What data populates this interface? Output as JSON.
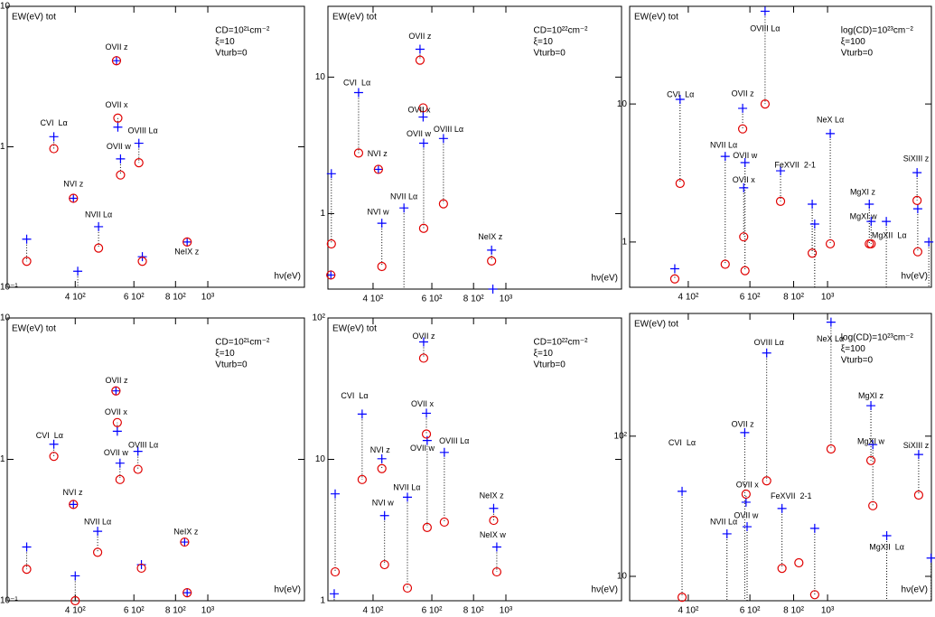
{
  "chart_data": [
    {
      "type": "scatter",
      "log_x": true,
      "log_y": true,
      "xlabel": "hν(eV)",
      "ylabel": "EW(eV) tot",
      "info": [
        "CD=10²¹cm⁻²",
        "ξ=10",
        "Vturb=0"
      ],
      "xlim": [
        250,
        1950
      ],
      "ylim": [
        0.1,
        10
      ],
      "xticks": [
        {
          "value": 400,
          "label": "4 10²"
        },
        {
          "value": 600,
          "label": "6 10²"
        },
        {
          "value": 800,
          "label": "8 10²"
        },
        {
          "value": 1000,
          "label": "10³"
        }
      ],
      "yticks": [
        {
          "value": 0.1,
          "label": "10⁻¹"
        },
        1,
        10
      ],
      "x": [
        286,
        345,
        395,
        407,
        470,
        532,
        537,
        547,
        621,
        636,
        867
      ],
      "series": [
        {
          "marker": "plus",
          "color": "#0000ff",
          "values": [
            0.22,
            1.18,
            0.43,
            0.13,
            0.27,
            4.1,
            1.38,
            0.82,
            1.06,
            0.165,
            0.21
          ]
        },
        {
          "marker": "circle",
          "color": "#e00000",
          "values": [
            0.153,
            0.97,
            0.43,
            null,
            0.19,
            4.1,
            1.6,
            0.63,
            0.77,
            0.153,
            0.21
          ]
        }
      ],
      "annotations": [
        {
          "text": "OVII z",
          "x": 532,
          "y": 5.1
        },
        {
          "text": "OVII x",
          "x": 532,
          "y": 1.97
        },
        {
          "text": "CVI  Lα",
          "x": 345,
          "y": 1.47
        },
        {
          "text": "OVII w",
          "x": 540,
          "y": 1.0
        },
        {
          "text": "OVIII Lα",
          "x": 638,
          "y": 1.29
        },
        {
          "text": "NVI z",
          "x": 395,
          "y": 0.54
        },
        {
          "text": "NVII Lα",
          "x": 470,
          "y": 0.326
        },
        {
          "text": "NeIX z",
          "x": 865,
          "y": 0.178
        }
      ]
    },
    {
      "type": "scatter",
      "log_x": true,
      "log_y": true,
      "xlabel": "hν(eV)",
      "ylabel": "EW(eV) tot",
      "info": [
        "CD=10²²cm⁻²",
        "ξ=10",
        "Vturb=0"
      ],
      "xlim": [
        293,
        2220
      ],
      "ylim": [
        0.28,
        33
      ],
      "xticks": [
        {
          "value": 400,
          "label": "4 10²"
        },
        {
          "value": 600,
          "label": "6 10²"
        },
        {
          "value": 800,
          "label": "8 10²"
        },
        {
          "value": 1000,
          "label": "10³"
        }
      ],
      "yticks": [
        1,
        10
      ],
      "x": [
        299,
        300,
        362,
        415,
        425,
        495,
        553,
        565,
        567,
        650,
        906,
        914
      ],
      "series": [
        {
          "marker": "plus",
          "color": "#0000ff",
          "values": [
            0.355,
            1.96,
            7.7,
            2.11,
            0.85,
            1.1,
            16,
            5.1,
            3.28,
            3.55,
            0.54,
            0.28
          ]
        },
        {
          "marker": "circle",
          "color": "#e00000",
          "values": [
            0.355,
            0.6,
            2.78,
            2.11,
            0.41,
            null,
            13.3,
            5.95,
            0.78,
            1.18,
            0.45,
            null
          ]
        }
      ],
      "annotations": [
        {
          "text": "OVII z",
          "x": 553,
          "y": 19.8
        },
        {
          "text": "CVI  Lα",
          "x": 358,
          "y": 9.0
        },
        {
          "text": "OVII x",
          "x": 550,
          "y": 5.7
        },
        {
          "text": "OVIII Lα",
          "x": 673,
          "y": 4.1
        },
        {
          "text": "OVII w",
          "x": 548,
          "y": 3.8
        },
        {
          "text": "NVI z",
          "x": 412,
          "y": 2.73
        },
        {
          "text": "NVI w",
          "x": 414,
          "y": 1.02
        },
        {
          "text": "NVII Lα",
          "x": 495,
          "y": 1.32
        },
        {
          "text": "NeIX z",
          "x": 898,
          "y": 0.67
        }
      ]
    },
    {
      "type": "scatter",
      "log_x": true,
      "log_y": true,
      "xlabel": "hν(eV)",
      "ylabel": "EW(eV) tot",
      "info": [
        "log(CD)=10²³cm⁻²",
        "ξ=100",
        "Vturb=0"
      ],
      "xlim": [
        272,
        1980
      ],
      "ylim": [
        0.47,
        51
      ],
      "xticks": [
        {
          "value": 400,
          "label": "4 10²"
        },
        {
          "value": 600,
          "label": "6 10²"
        },
        {
          "value": 800,
          "label": "8 10²"
        },
        {
          "value": 1000,
          "label": "10³"
        }
      ],
      "yticks": [
        1,
        10
      ],
      "x": [
        366,
        379,
        510,
        572,
        576,
        581,
        663,
        734,
        904,
        919,
        1018,
        1316,
        1332,
        1472,
        1802,
        1810,
        1947
      ],
      "series": [
        {
          "marker": "plus",
          "color": "#0000ff",
          "values": [
            0.64,
            10.8,
            4.17,
            9.3,
            2.47,
            3.76,
            47,
            3.28,
            1.88,
            1.35,
            6.1,
            1.88,
            1.41,
            1.41,
            3.18,
            1.74,
            1.0
          ]
        },
        {
          "marker": "circle",
          "color": "#e00000",
          "values": [
            0.54,
            2.66,
            0.69,
            6.6,
            1.09,
            0.62,
            10.0,
            1.97,
            0.83,
            null,
            0.97,
            0.97,
            0.97,
            null,
            2.0,
            0.85,
            null
          ]
        }
      ],
      "annotations": [
        {
          "text": "OVIII Lα",
          "x": 663,
          "y": 35
        },
        {
          "text": "CVI  Lα",
          "x": 380,
          "y": 11.6
        },
        {
          "text": "OVII z",
          "x": 572,
          "y": 11.8
        },
        {
          "text": "NeX Lα",
          "x": 1018,
          "y": 7.6
        },
        {
          "text": "NVII Lα",
          "x": 505,
          "y": 5.0
        },
        {
          "text": "OVII w",
          "x": 581,
          "y": 4.2
        },
        {
          "text": "FeXVII  2-1",
          "x": 808,
          "y": 3.6
        },
        {
          "text": "OVII x",
          "x": 576,
          "y": 2.8
        },
        {
          "text": "SiXIII z",
          "x": 1790,
          "y": 4.0
        },
        {
          "text": "MgXI z",
          "x": 1260,
          "y": 2.29
        },
        {
          "text": "MgXI w",
          "x": 1265,
          "y": 1.52
        },
        {
          "text": "MgXII  Lα",
          "x": 1500,
          "y": 1.11
        }
      ]
    },
    {
      "type": "scatter",
      "log_x": true,
      "log_y": true,
      "xlabel": "hν(eV)",
      "ylabel": "EW(eV) tot",
      "info": [
        "CD=10²¹cm⁻²",
        "ξ=10",
        "Vturb=0"
      ],
      "xlim": [
        250,
        1950
      ],
      "ylim": [
        0.1,
        10
      ],
      "xticks": [
        {
          "value": 400,
          "label": "4 10²"
        },
        {
          "value": 600,
          "label": "6 10²"
        },
        {
          "value": 800,
          "label": "8 10²"
        },
        {
          "value": 1000,
          "label": "10³"
        }
      ],
      "yticks": [
        {
          "value": 0.1,
          "label": "10⁻¹"
        },
        1,
        10
      ],
      "x": [
        286,
        345,
        395,
        400,
        467,
        530,
        535,
        545,
        617,
        632,
        852,
        867
      ],
      "series": [
        {
          "marker": "plus",
          "color": "#0000ff",
          "values": [
            0.24,
            1.28,
            0.48,
            0.15,
            0.31,
            3.05,
            1.58,
            0.94,
            1.14,
            0.18,
            0.26,
            0.114
          ]
        },
        {
          "marker": "circle",
          "color": "#e00000",
          "values": [
            0.167,
            1.05,
            0.48,
            0.1,
            0.22,
            3.05,
            1.82,
            0.72,
            0.85,
            0.17,
            0.26,
            0.114
          ]
        }
      ],
      "annotations": [
        {
          "text": "OVII z",
          "x": 532,
          "y": 3.58
        },
        {
          "text": "OVII x",
          "x": 530,
          "y": 2.14
        },
        {
          "text": "CVI  Lα",
          "x": 335,
          "y": 1.46
        },
        {
          "text": "OVIII Lα",
          "x": 640,
          "y": 1.25
        },
        {
          "text": "OVII w",
          "x": 530,
          "y": 1.11
        },
        {
          "text": "NVI z",
          "x": 393,
          "y": 0.58
        },
        {
          "text": "NVII Lα",
          "x": 467,
          "y": 0.36
        },
        {
          "text": "NeIX z",
          "x": 860,
          "y": 0.305
        }
      ]
    },
    {
      "type": "scatter",
      "log_x": true,
      "log_y": true,
      "xlabel": "hν(eV)",
      "ylabel": "EW(eV) tot",
      "info": [
        "CD=10²²cm⁻²",
        "ξ=10",
        "Vturb=0"
      ],
      "xlim": [
        293,
        2220
      ],
      "ylim": [
        1,
        100
      ],
      "xticks": [
        {
          "value": 400,
          "label": "4 10²"
        },
        {
          "value": 600,
          "label": "6 10²"
        },
        {
          "value": 800,
          "label": "8 10²"
        },
        {
          "value": 1000,
          "label": "10³"
        }
      ],
      "yticks": [
        1,
        10,
        {
          "value": 100,
          "label": "10²"
        }
      ],
      "x": [
        306,
        308,
        371,
        425,
        433,
        507,
        567,
        578,
        581,
        654,
        919,
        939
      ],
      "series": [
        {
          "marker": "plus",
          "color": "#0000ff",
          "values": [
            1.12,
            5.7,
            20.9,
            10.1,
            4.0,
            5.4,
            67.7,
            21.2,
            13.6,
            11.2,
            4.5,
            2.4
          ]
        },
        {
          "marker": "circle",
          "color": "#e00000",
          "values": [
            null,
            1.6,
            7.2,
            8.6,
            1.8,
            1.23,
            52,
            15.1,
            3.3,
            3.6,
            3.7,
            1.6
          ]
        }
      ],
      "annotations": [
        {
          "text": "OVII z",
          "x": 567,
          "y": 74
        },
        {
          "text": "CVI  Lα",
          "x": 352,
          "y": 28
        },
        {
          "text": "OVII x",
          "x": 562,
          "y": 24.5
        },
        {
          "text": "NVI z",
          "x": 420,
          "y": 11.6
        },
        {
          "text": "OVIII Lα",
          "x": 700,
          "y": 13.4
        },
        {
          "text": "OVII w",
          "x": 562,
          "y": 11.9
        },
        {
          "text": "NVII Lα",
          "x": 505,
          "y": 6.3
        },
        {
          "text": "NVI w",
          "x": 428,
          "y": 4.9
        },
        {
          "text": "NeIX z",
          "x": 906,
          "y": 5.5
        },
        {
          "text": "NeIX w",
          "x": 913,
          "y": 2.9
        }
      ]
    },
    {
      "type": "scatter",
      "log_x": true,
      "log_y": true,
      "xlabel": "hν(eV)",
      "ylabel": "EW(eV) tot",
      "info": [
        "log(CD)=10²³cm⁻²",
        "ξ=100",
        "Vturb=0"
      ],
      "xlim": [
        272,
        1980
      ],
      "ylim": [
        6.7,
        750
      ],
      "xticks": [
        {
          "value": 400,
          "label": "4 10²"
        },
        {
          "value": 600,
          "label": "6 10²"
        },
        {
          "value": 800,
          "label": "8 10²"
        },
        {
          "value": 1000,
          "label": "10³"
        }
      ],
      "yticks": [
        10,
        {
          "value": 100,
          "label": "10²"
        }
      ],
      "x": [
        384,
        516,
        580,
        585,
        589,
        670,
        741,
        828,
        919,
        1023,
        1330,
        1347,
        1476,
        1821,
        1976
      ],
      "series": [
        {
          "marker": "plus",
          "color": "#0000ff",
          "values": [
            40.4,
            20.1,
            106,
            33.8,
            22.6,
            392,
            30.5,
            null,
            22.0,
            650,
            165,
            87,
            19.5,
            74,
            13.5
          ]
        },
        {
          "marker": "circle",
          "color": "#e00000",
          "values": [
            7.1,
            null,
            null,
            38.6,
            null,
            48,
            11.4,
            12.5,
            7.4,
            81,
            67,
            31.9,
            null,
            38,
            null
          ]
        }
      ],
      "annotations": [
        {
          "text": "NeX Lα",
          "x": 1018,
          "y": 490
        },
        {
          "text": "OVIII Lα",
          "x": 680,
          "y": 462
        },
        {
          "text": "MgXI z",
          "x": 1330,
          "y": 192
        },
        {
          "text": "CVI  Lα",
          "x": 384,
          "y": 89
        },
        {
          "text": "OVII z",
          "x": 572,
          "y": 121
        },
        {
          "text": "MgXI w",
          "x": 1330,
          "y": 91
        },
        {
          "text": "SiXIII z",
          "x": 1790,
          "y": 85
        },
        {
          "text": "OVII x",
          "x": 590,
          "y": 44.8
        },
        {
          "text": "FeXVII  2-1",
          "x": 787,
          "y": 37
        },
        {
          "text": "OVII w",
          "x": 585,
          "y": 27
        },
        {
          "text": "NVII Lα",
          "x": 505,
          "y": 24.4
        },
        {
          "text": "MgXII  Lα",
          "x": 1476,
          "y": 16
        }
      ]
    }
  ]
}
